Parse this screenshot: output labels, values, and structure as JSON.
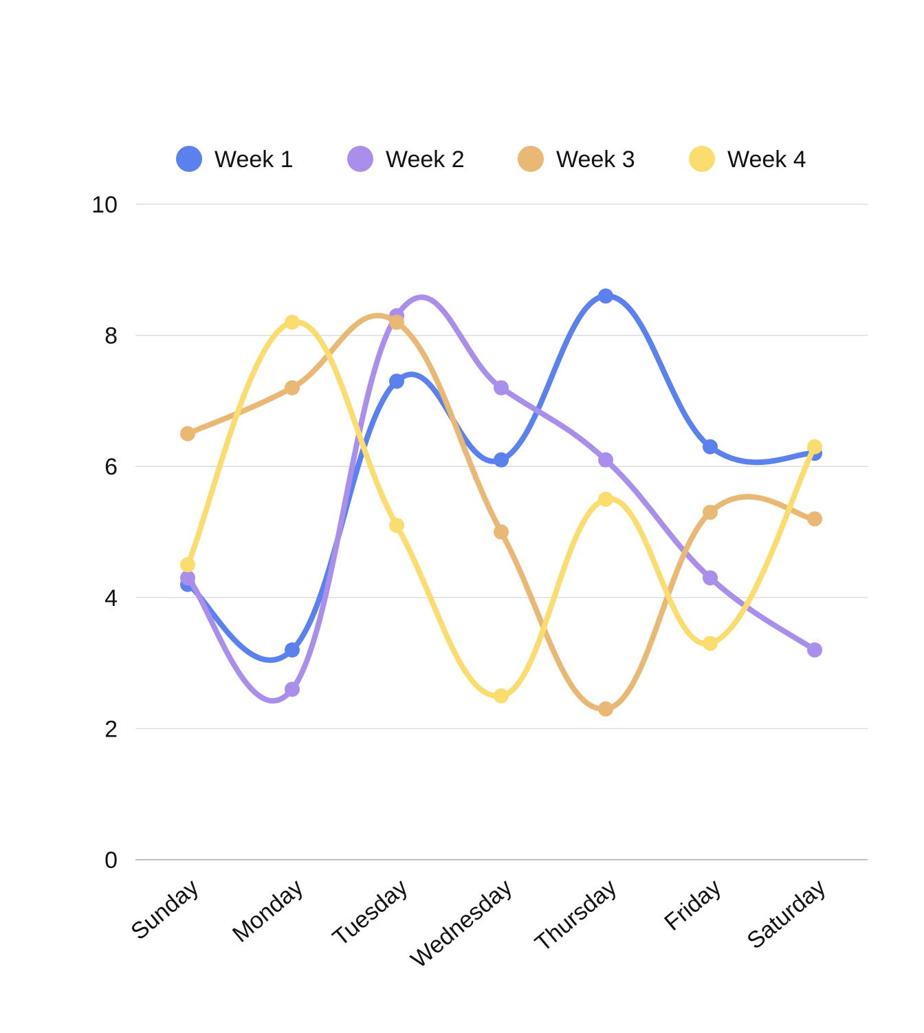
{
  "chart_data": {
    "type": "line",
    "categories": [
      "Sunday",
      "Monday",
      "Tuesday",
      "Wednesday",
      "Thursday",
      "Friday",
      "Saturday"
    ],
    "series": [
      {
        "name": "Week 1",
        "color": "#5b81ee",
        "values": [
          4.2,
          3.2,
          7.3,
          6.1,
          8.6,
          6.3,
          6.2
        ]
      },
      {
        "name": "Week 2",
        "color": "#a98eec",
        "values": [
          4.3,
          2.6,
          8.3,
          7.2,
          6.1,
          4.3,
          3.2
        ]
      },
      {
        "name": "Week 3",
        "color": "#e8b874",
        "values": [
          6.5,
          7.2,
          8.2,
          5.0,
          2.3,
          5.3,
          5.2
        ]
      },
      {
        "name": "Week 4",
        "color": "#fadd6e",
        "values": [
          4.5,
          8.2,
          5.1,
          2.5,
          5.5,
          3.3,
          6.3
        ]
      }
    ],
    "y_ticks": [
      "0",
      "2",
      "4",
      "6",
      "8",
      "10"
    ],
    "ylim": [
      0,
      10
    ],
    "title": "",
    "xlabel": "",
    "ylabel": "",
    "grid": true,
    "legend_position": "top-center",
    "smooth": true
  }
}
